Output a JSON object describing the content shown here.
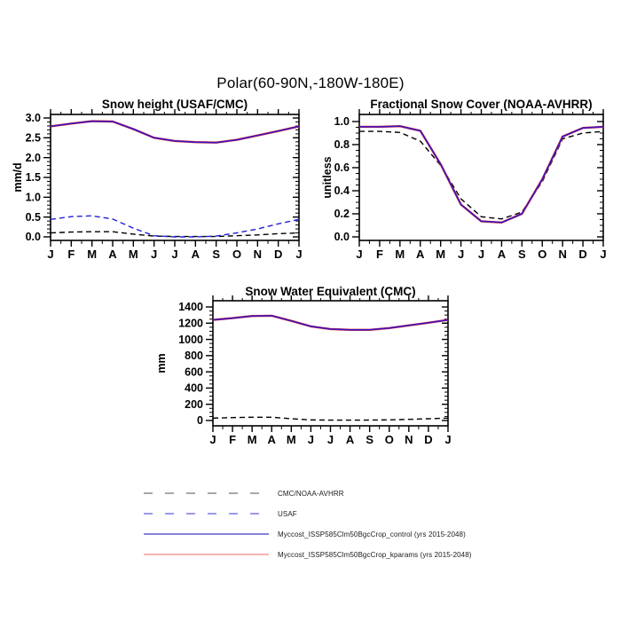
{
  "page_title": "Polar(60-90N,-180W-180E)",
  "months": [
    "J",
    "F",
    "M",
    "A",
    "M",
    "J",
    "J",
    "A",
    "S",
    "O",
    "N",
    "D",
    "J"
  ],
  "chart_data": [
    {
      "type": "line",
      "title": "Snow height (USAF/CMC)",
      "ylabel": "mm/d",
      "ylim": [
        0,
        3
      ],
      "ytick_values": [
        0,
        0.5,
        1.0,
        1.5,
        2.0,
        2.5,
        3.0
      ],
      "ytick_labels": [
        "0.0",
        "0.5",
        "1.0",
        "1.5",
        "2.0",
        "2.5",
        "3.0"
      ],
      "y_minor_step": 0.1,
      "grid": false,
      "x_categories": [
        "J",
        "F",
        "M",
        "A",
        "M",
        "J",
        "J",
        "A",
        "S",
        "O",
        "N",
        "D",
        "J"
      ],
      "series": [
        {
          "name": "CMC (obs)",
          "color": "#000000",
          "style": "dashed",
          "values": [
            0.1,
            0.12,
            0.13,
            0.13,
            0.07,
            0.02,
            0.01,
            0.01,
            0.01,
            0.03,
            0.05,
            0.08,
            0.1
          ]
        },
        {
          "name": "USAF (obs)",
          "color": "#2020d8",
          "style": "dashed",
          "values": [
            0.44,
            0.51,
            0.53,
            0.45,
            0.22,
            0.03,
            0.0,
            0.0,
            0.02,
            0.1,
            0.2,
            0.33,
            0.44
          ]
        },
        {
          "name": "Myccost_ISSP585Clm50BgcCrop_kparams (yrs 2015-2048)",
          "color": "#d83030",
          "style": "solid",
          "values": [
            2.79,
            2.86,
            2.92,
            2.91,
            2.72,
            2.5,
            2.42,
            2.39,
            2.38,
            2.45,
            2.56,
            2.67,
            2.79
          ]
        },
        {
          "name": "Myccost_ISSP585Clm50BgcCrop_control (yrs 2015-2048)",
          "color": "#3812c6",
          "style": "solid",
          "values": [
            2.79,
            2.86,
            2.92,
            2.91,
            2.72,
            2.5,
            2.42,
            2.39,
            2.38,
            2.45,
            2.56,
            2.67,
            2.79
          ]
        }
      ]
    },
    {
      "type": "line",
      "title": "Fractional Snow Cover (NOAA-AVHRR)",
      "ylabel": "unitless",
      "ylim": [
        0,
        1
      ],
      "ytick_values": [
        0,
        0.2,
        0.4,
        0.6,
        0.8,
        1.0
      ],
      "ytick_labels": [
        "0.0",
        "0.2",
        "0.4",
        "0.6",
        "0.8",
        "1.0"
      ],
      "y_minor_step": 0.05,
      "grid": false,
      "x_categories": [
        "J",
        "F",
        "M",
        "A",
        "M",
        "J",
        "J",
        "A",
        "S",
        "O",
        "N",
        "D",
        "J"
      ],
      "series": [
        {
          "name": "NOAA-AVHRR (obs)",
          "color": "#000000",
          "style": "dashed",
          "values": [
            0.915,
            0.915,
            0.905,
            0.83,
            0.62,
            0.33,
            0.175,
            0.155,
            0.215,
            0.48,
            0.85,
            0.9,
            0.915
          ]
        },
        {
          "name": "Myccost_ISSP585Clm50BgcCrop_kparams (yrs 2015-2048)",
          "color": "#d83030",
          "style": "solid",
          "values": [
            0.955,
            0.955,
            0.96,
            0.92,
            0.63,
            0.28,
            0.135,
            0.125,
            0.2,
            0.5,
            0.87,
            0.945,
            0.955
          ]
        },
        {
          "name": "Myccost_ISSP585Clm50BgcCrop_control (yrs 2015-2048)",
          "color": "#3812c6",
          "style": "solid",
          "values": [
            0.955,
            0.955,
            0.96,
            0.92,
            0.63,
            0.28,
            0.135,
            0.125,
            0.2,
            0.5,
            0.87,
            0.945,
            0.955
          ]
        }
      ]
    },
    {
      "type": "line",
      "title": "Snow Water Equivalent (CMC)",
      "ylabel": "mm",
      "ylim": [
        0,
        1400
      ],
      "ytick_values": [
        0,
        200,
        400,
        600,
        800,
        1000,
        1200,
        1400
      ],
      "ytick_labels": [
        "0",
        "200",
        "400",
        "600",
        "800",
        "1000",
        "1200",
        "1400"
      ],
      "y_minor_step": 50,
      "grid": false,
      "x_categories": [
        "J",
        "F",
        "M",
        "A",
        "M",
        "J",
        "J",
        "A",
        "S",
        "O",
        "N",
        "D",
        "J"
      ],
      "series": [
        {
          "name": "CMC (obs)",
          "color": "#000000",
          "style": "dashed",
          "values": [
            30,
            36,
            40,
            40,
            22,
            8,
            4,
            4,
            5,
            8,
            14,
            22,
            30
          ]
        },
        {
          "name": "Myccost_ISSP585Clm50BgcCrop_kparams (yrs 2015-2048)",
          "color": "#d83030",
          "style": "solid",
          "values": [
            1240,
            1262,
            1288,
            1292,
            1228,
            1160,
            1128,
            1118,
            1118,
            1140,
            1172,
            1205,
            1240
          ]
        },
        {
          "name": "Myccost_ISSP585Clm50BgcCrop_control (yrs 2015-2048)",
          "color": "#3812c6",
          "style": "solid",
          "values": [
            1240,
            1262,
            1288,
            1292,
            1228,
            1160,
            1128,
            1118,
            1118,
            1140,
            1172,
            1205,
            1240
          ]
        }
      ]
    }
  ],
  "legend": {
    "items": [
      {
        "label": "CMC/NOAA-AVHRR",
        "color": "#8c8c8c",
        "dasharray": "10 14"
      },
      {
        "label": "USAF",
        "color": "#7878e6",
        "dasharray": "10 14"
      },
      {
        "label": "Myccost_ISSP585Clm50BgcCrop_control (yrs 2015-2048)",
        "color": "#5a5ace",
        "dasharray": "none"
      },
      {
        "label": "Myccost_ISSP585Clm50BgcCrop_kparams (yrs 2015-2048)",
        "color": "#f29898",
        "dasharray": "none"
      }
    ]
  }
}
